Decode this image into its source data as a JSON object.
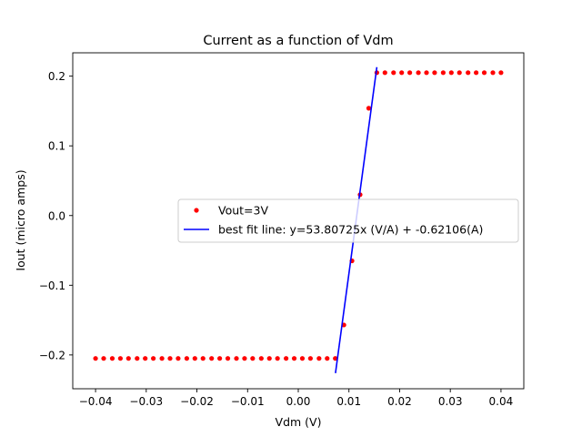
{
  "chart_data": {
    "type": "scatter",
    "title": "Current as a function of Vdm",
    "xlabel": "Vdm (V)",
    "ylabel": "Iout (micro amps)",
    "xlim": [
      -0.0445,
      0.0445
    ],
    "ylim": [
      -0.2485,
      0.2335
    ],
    "xticks": [
      -0.04,
      -0.03,
      -0.02,
      -0.01,
      0.0,
      0.01,
      0.02,
      0.03,
      0.04
    ],
    "xtick_labels": [
      "−0.04",
      "−0.03",
      "−0.02",
      "−0.01",
      "0.00",
      "0.01",
      "0.02",
      "0.03",
      "0.04"
    ],
    "yticks": [
      -0.2,
      -0.1,
      0.0,
      0.1,
      0.2
    ],
    "ytick_labels": [
      "−0.2",
      "−0.1",
      "0.0",
      "0.1",
      "0.2"
    ],
    "grid": false,
    "legend_position": "center-right",
    "series": [
      {
        "name": "Vout=3V",
        "kind": "scatter",
        "color": "#ff0000",
        "points": [
          [
            -0.04,
            -0.205
          ],
          [
            -0.0384,
            -0.205
          ],
          [
            -0.0367,
            -0.205
          ],
          [
            -0.0351,
            -0.205
          ],
          [
            -0.0335,
            -0.205
          ],
          [
            -0.0318,
            -0.205
          ],
          [
            -0.0302,
            -0.205
          ],
          [
            -0.0286,
            -0.205
          ],
          [
            -0.0269,
            -0.205
          ],
          [
            -0.0253,
            -0.205
          ],
          [
            -0.0237,
            -0.205
          ],
          [
            -0.022,
            -0.205
          ],
          [
            -0.0204,
            -0.205
          ],
          [
            -0.0188,
            -0.205
          ],
          [
            -0.0171,
            -0.205
          ],
          [
            -0.0155,
            -0.205
          ],
          [
            -0.0139,
            -0.205
          ],
          [
            -0.0122,
            -0.205
          ],
          [
            -0.0106,
            -0.205
          ],
          [
            -0.009,
            -0.205
          ],
          [
            -0.0073,
            -0.205
          ],
          [
            -0.0057,
            -0.205
          ],
          [
            -0.0041,
            -0.205
          ],
          [
            -0.0024,
            -0.205
          ],
          [
            -0.0008,
            -0.205
          ],
          [
            0.0008,
            -0.205
          ],
          [
            0.0024,
            -0.205
          ],
          [
            0.0041,
            -0.205
          ],
          [
            0.0057,
            -0.205
          ],
          [
            0.0073,
            -0.205
          ],
          [
            0.009,
            -0.157
          ],
          [
            0.0106,
            -0.065
          ],
          [
            0.0122,
            0.03
          ],
          [
            0.0139,
            0.154
          ],
          [
            0.0155,
            0.205
          ],
          [
            0.0171,
            0.205
          ],
          [
            0.0188,
            0.205
          ],
          [
            0.0204,
            0.205
          ],
          [
            0.022,
            0.205
          ],
          [
            0.0237,
            0.205
          ],
          [
            0.0253,
            0.205
          ],
          [
            0.0269,
            0.205
          ],
          [
            0.0286,
            0.205
          ],
          [
            0.0302,
            0.205
          ],
          [
            0.0318,
            0.205
          ],
          [
            0.0335,
            0.205
          ],
          [
            0.0351,
            0.205
          ],
          [
            0.0367,
            0.205
          ],
          [
            0.0384,
            0.205
          ],
          [
            0.04,
            0.205
          ]
        ]
      },
      {
        "name": "best fit line: y=53.80725x (V/A) + -0.62106(A)",
        "kind": "line",
        "color": "#0000ff",
        "slope": 53.80725,
        "intercept": -0.62106,
        "x_range": [
          0.00734,
          0.0155
        ]
      }
    ]
  }
}
